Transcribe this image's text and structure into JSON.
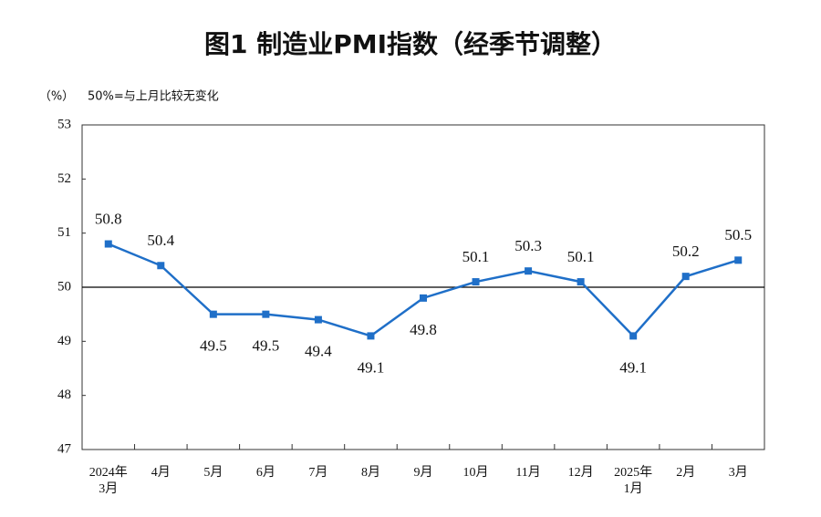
{
  "chart_data": {
    "type": "line",
    "title": "图1  制造业PMI指数（经季节调整）",
    "y_label": "（%）",
    "annotation": "50%=与上月比较无变化",
    "categories": [
      "2024年\n3月",
      "4月",
      "5月",
      "6月",
      "7月",
      "8月",
      "9月",
      "10月",
      "11月",
      "12月",
      "2025年\n1月",
      "2月",
      "3月"
    ],
    "series": [
      {
        "name": "PMI",
        "color": "#1f6fc8",
        "values": [
          50.8,
          50.4,
          49.5,
          49.5,
          49.4,
          49.1,
          49.8,
          50.1,
          50.3,
          50.1,
          49.1,
          50.2,
          50.5
        ]
      }
    ],
    "ylim": [
      47,
      53
    ],
    "yticks": [
      47,
      48,
      49,
      50,
      51,
      52,
      53
    ],
    "reference_line": 50,
    "grid": false
  }
}
